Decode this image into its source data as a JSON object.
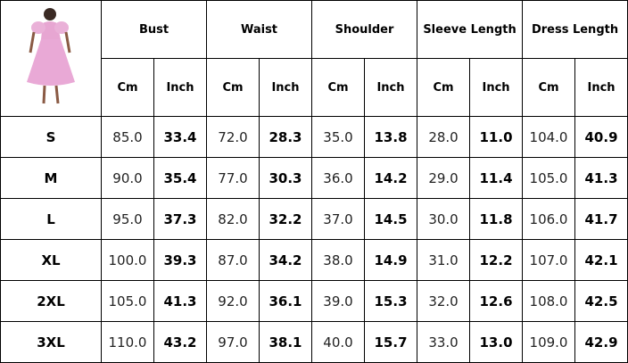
{
  "table": {
    "groups": [
      "Bust",
      "Waist",
      "Shoulder",
      "Sleeve Length",
      "Dress Length"
    ],
    "units": [
      "Cm",
      "Inch",
      "Cm",
      "Inch",
      "Cm",
      "Inch",
      "Cm",
      "Inch",
      "Cm",
      "Inch"
    ],
    "rows": [
      {
        "size": "S",
        "values": [
          "85.0",
          "33.4",
          "72.0",
          "28.3",
          "35.0",
          "13.8",
          "28.0",
          "11.0",
          "104.0",
          "40.9"
        ]
      },
      {
        "size": "M",
        "values": [
          "90.0",
          "35.4",
          "77.0",
          "30.3",
          "36.0",
          "14.2",
          "29.0",
          "11.4",
          "105.0",
          "41.3"
        ]
      },
      {
        "size": "L",
        "values": [
          "95.0",
          "37.3",
          "82.0",
          "32.2",
          "37.0",
          "14.5",
          "30.0",
          "11.8",
          "106.0",
          "41.7"
        ]
      },
      {
        "size": "XL",
        "values": [
          "100.0",
          "39.3",
          "87.0",
          "34.2",
          "38.0",
          "14.9",
          "31.0",
          "12.2",
          "107.0",
          "42.1"
        ]
      },
      {
        "size": "2XL",
        "values": [
          "105.0",
          "41.3",
          "92.0",
          "36.1",
          "39.0",
          "15.3",
          "32.0",
          "12.6",
          "108.0",
          "42.5"
        ]
      },
      {
        "size": "3XL",
        "values": [
          "110.0",
          "43.2",
          "97.0",
          "38.1",
          "40.0",
          "15.7",
          "33.0",
          "13.0",
          "109.0",
          "42.9"
        ]
      }
    ]
  }
}
